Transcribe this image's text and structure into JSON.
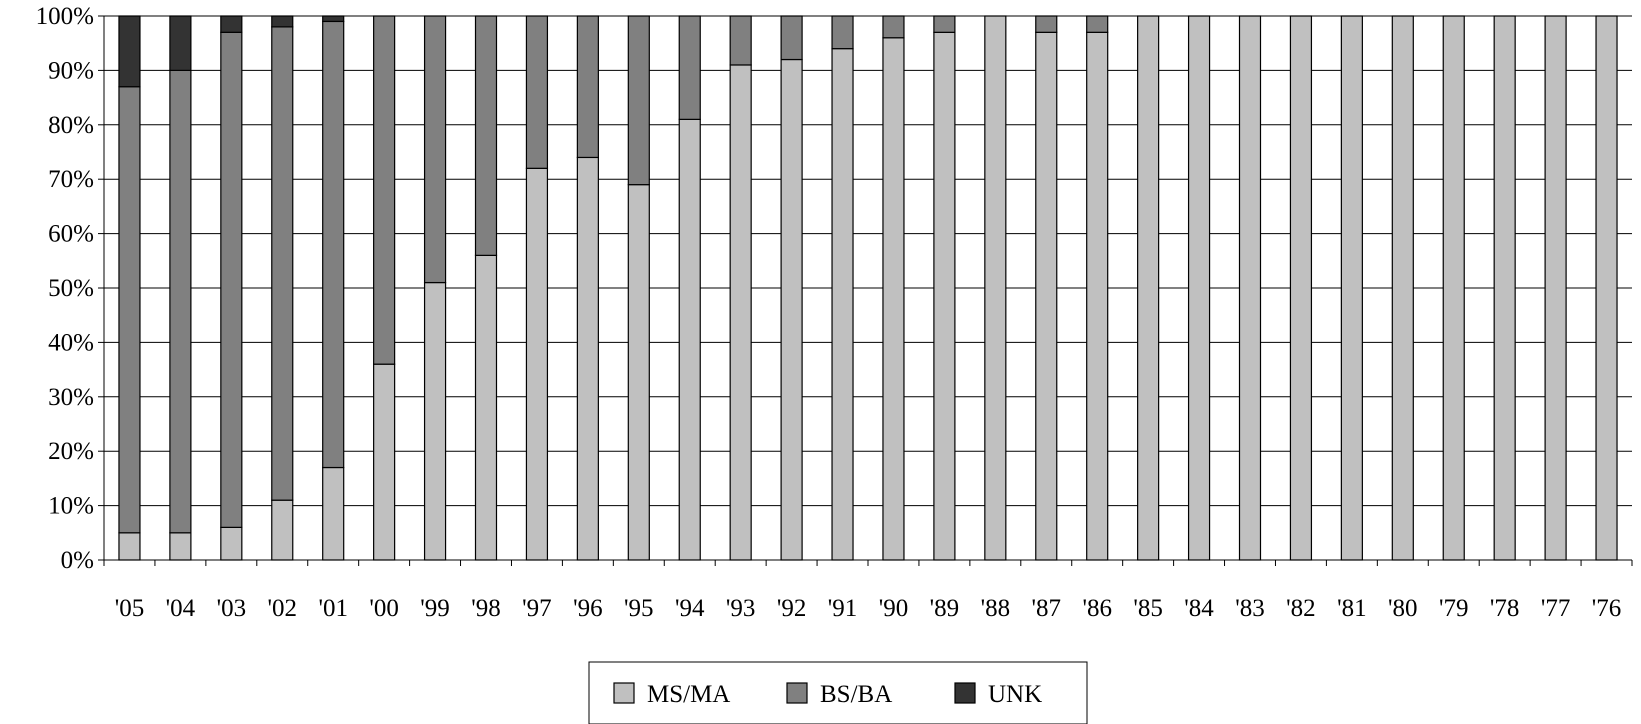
{
  "chart_data": {
    "type": "bar",
    "stacked": "percent",
    "categories": [
      "'05",
      "'04",
      "'03",
      "'02",
      "'01",
      "'00",
      "'99",
      "'98",
      "'97",
      "'96",
      "'95",
      "'94",
      "'93",
      "'92",
      "'91",
      "'90",
      "'89",
      "'88",
      "'87",
      "'86",
      "'85",
      "'84",
      "'83",
      "'82",
      "'81",
      "'80",
      "'79",
      "'78",
      "'77",
      "'76"
    ],
    "series": [
      {
        "name": "MS/MA",
        "color": "#c0c0c0",
        "values": [
          5,
          5,
          6,
          11,
          17,
          36,
          51,
          56,
          72,
          74,
          69,
          81,
          91,
          92,
          94,
          96,
          97,
          100,
          97,
          97,
          100,
          100,
          100,
          100,
          100,
          100,
          100,
          100,
          100,
          100
        ]
      },
      {
        "name": "BS/BA",
        "color": "#808080",
        "values": [
          82,
          85,
          91,
          87,
          82,
          64,
          49,
          44,
          28,
          26,
          31,
          19,
          9,
          8,
          6,
          4,
          3,
          0,
          3,
          3,
          0,
          0,
          0,
          0,
          0,
          0,
          0,
          0,
          0,
          0
        ]
      },
      {
        "name": "UNK",
        "color": "#333333",
        "values": [
          13,
          10,
          3,
          2,
          1,
          0,
          0,
          0,
          0,
          0,
          0,
          0,
          0,
          0,
          0,
          0,
          0,
          0,
          0,
          0,
          0,
          0,
          0,
          0,
          0,
          0,
          0,
          0,
          0,
          0
        ]
      }
    ],
    "y_ticks": [
      "0%",
      "10%",
      "20%",
      "30%",
      "40%",
      "50%",
      "60%",
      "70%",
      "80%",
      "90%",
      "100%"
    ],
    "ylim": [
      0,
      100
    ],
    "grid": true,
    "legend_position": "bottom-center"
  }
}
